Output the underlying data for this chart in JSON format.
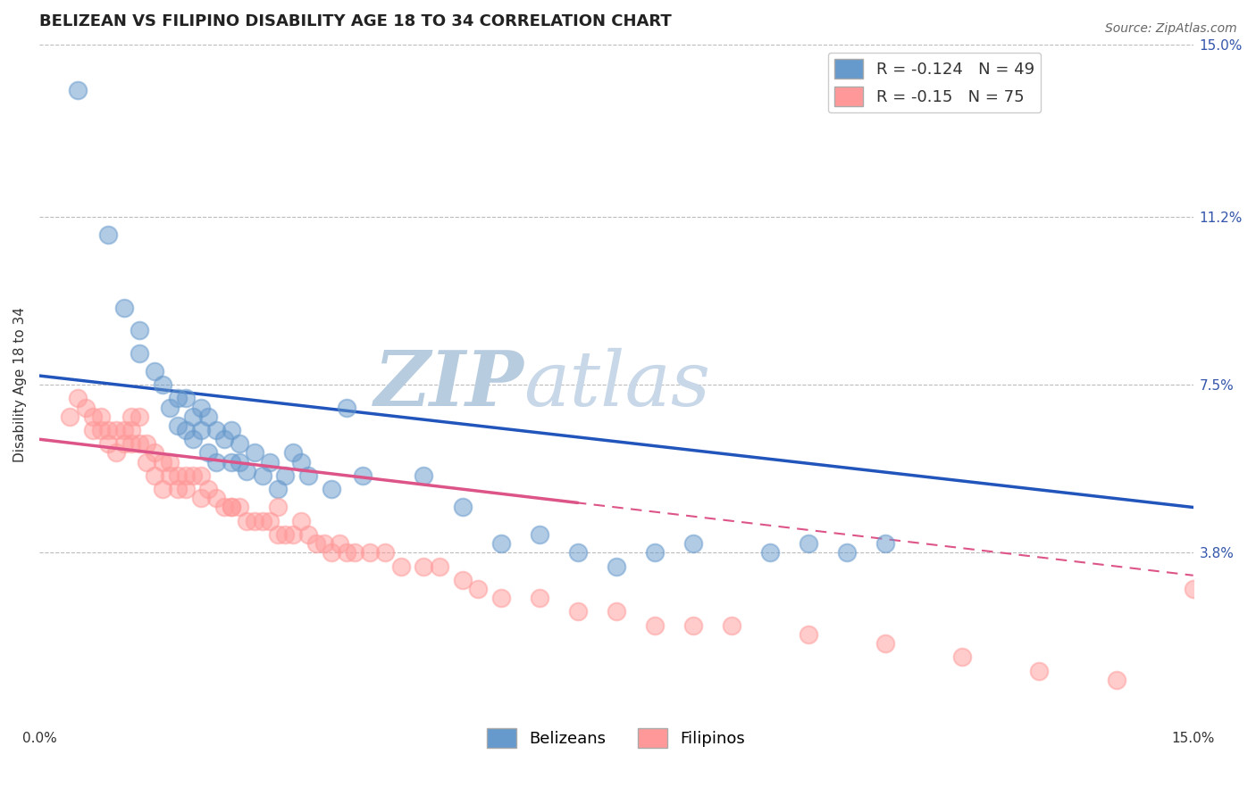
{
  "title": "BELIZEAN VS FILIPINO DISABILITY AGE 18 TO 34 CORRELATION CHART",
  "source": "Source: ZipAtlas.com",
  "ylabel": "Disability Age 18 to 34",
  "xlabel": "",
  "xlim": [
    0.0,
    0.15
  ],
  "ylim": [
    0.0,
    0.15
  ],
  "yticks": [
    0.038,
    0.075,
    0.112,
    0.15
  ],
  "ytick_labels": [
    "3.8%",
    "7.5%",
    "11.2%",
    "15.0%"
  ],
  "xticks": [
    0.0,
    0.15
  ],
  "xtick_labels": [
    "0.0%",
    "15.0%"
  ],
  "belizean_color": "#6699cc",
  "filipino_color": "#ff9999",
  "belizean_R": -0.124,
  "belizean_N": 49,
  "filipino_R": -0.15,
  "filipino_N": 75,
  "watermark_text": "ZIPatlas",
  "belizean_trend_start_y": 0.077,
  "belizean_trend_end_y": 0.048,
  "filipino_trend_start_y": 0.063,
  "filipino_trend_end_y": 0.033,
  "belizean_x": [
    0.005,
    0.009,
    0.011,
    0.013,
    0.013,
    0.015,
    0.016,
    0.017,
    0.018,
    0.018,
    0.019,
    0.019,
    0.02,
    0.02,
    0.021,
    0.021,
    0.022,
    0.022,
    0.023,
    0.023,
    0.024,
    0.025,
    0.025,
    0.026,
    0.026,
    0.027,
    0.028,
    0.029,
    0.03,
    0.031,
    0.032,
    0.033,
    0.034,
    0.035,
    0.038,
    0.04,
    0.042,
    0.05,
    0.055,
    0.06,
    0.065,
    0.07,
    0.075,
    0.08,
    0.085,
    0.095,
    0.1,
    0.105,
    0.11
  ],
  "belizean_y": [
    0.14,
    0.108,
    0.092,
    0.087,
    0.082,
    0.078,
    0.075,
    0.07,
    0.072,
    0.066,
    0.065,
    0.072,
    0.068,
    0.063,
    0.065,
    0.07,
    0.06,
    0.068,
    0.065,
    0.058,
    0.063,
    0.058,
    0.065,
    0.058,
    0.062,
    0.056,
    0.06,
    0.055,
    0.058,
    0.052,
    0.055,
    0.06,
    0.058,
    0.055,
    0.052,
    0.07,
    0.055,
    0.055,
    0.048,
    0.04,
    0.042,
    0.038,
    0.035,
    0.038,
    0.04,
    0.038,
    0.04,
    0.038,
    0.04
  ],
  "filipino_x": [
    0.004,
    0.005,
    0.006,
    0.007,
    0.007,
    0.008,
    0.008,
    0.009,
    0.009,
    0.01,
    0.01,
    0.011,
    0.011,
    0.012,
    0.012,
    0.012,
    0.013,
    0.013,
    0.014,
    0.014,
    0.015,
    0.015,
    0.016,
    0.016,
    0.017,
    0.017,
    0.018,
    0.018,
    0.019,
    0.019,
    0.02,
    0.021,
    0.021,
    0.022,
    0.023,
    0.024,
    0.025,
    0.026,
    0.027,
    0.028,
    0.029,
    0.03,
    0.031,
    0.031,
    0.032,
    0.033,
    0.034,
    0.035,
    0.036,
    0.037,
    0.038,
    0.039,
    0.04,
    0.041,
    0.043,
    0.045,
    0.047,
    0.05,
    0.052,
    0.055,
    0.057,
    0.06,
    0.065,
    0.07,
    0.075,
    0.08,
    0.085,
    0.09,
    0.1,
    0.11,
    0.12,
    0.13,
    0.14,
    0.15,
    0.025
  ],
  "filipino_y": [
    0.068,
    0.072,
    0.07,
    0.065,
    0.068,
    0.068,
    0.065,
    0.065,
    0.062,
    0.065,
    0.06,
    0.065,
    0.062,
    0.068,
    0.065,
    0.062,
    0.062,
    0.068,
    0.062,
    0.058,
    0.06,
    0.055,
    0.058,
    0.052,
    0.058,
    0.055,
    0.055,
    0.052,
    0.055,
    0.052,
    0.055,
    0.055,
    0.05,
    0.052,
    0.05,
    0.048,
    0.048,
    0.048,
    0.045,
    0.045,
    0.045,
    0.045,
    0.042,
    0.048,
    0.042,
    0.042,
    0.045,
    0.042,
    0.04,
    0.04,
    0.038,
    0.04,
    0.038,
    0.038,
    0.038,
    0.038,
    0.035,
    0.035,
    0.035,
    0.032,
    0.03,
    0.028,
    0.028,
    0.025,
    0.025,
    0.022,
    0.022,
    0.022,
    0.02,
    0.018,
    0.015,
    0.012,
    0.01,
    0.03,
    0.048
  ],
  "title_fontsize": 13,
  "axis_label_fontsize": 11,
  "tick_fontsize": 11,
  "legend_fontsize": 13,
  "source_fontsize": 10,
  "grid_color": "#bbbbbb",
  "background_color": "#ffffff",
  "belizean_trend_color": "#2255bb",
  "filipino_trend_color": "#dd5588",
  "watermark_color": "#ccd9e8",
  "right_ytick_color": "#3355aa"
}
